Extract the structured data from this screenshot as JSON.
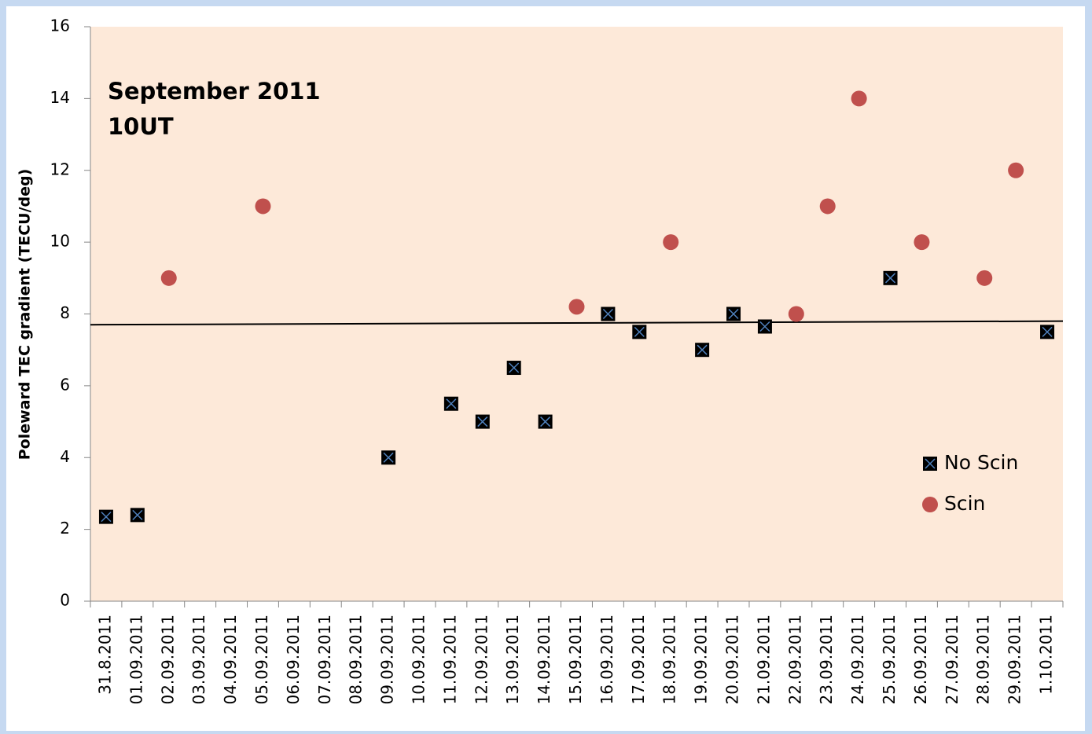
{
  "chart_data": {
    "type": "scatter",
    "annotation": [
      "September 2011",
      "10UT"
    ],
    "y_label": "Poleward TEC gradient (TECU/deg)",
    "categories": [
      "31.8.2011",
      "01.09.2011",
      "02.09.2011",
      "03.09.2011",
      "04.09.2011",
      "05.09.2011",
      "06.09.2011",
      "07.09.2011",
      "08.09.2011",
      "09.09.2011",
      "10.09.2011",
      "11.09.2011",
      "12.09.2011",
      "13.09.2011",
      "14.09.2011",
      "15.09.2011",
      "16.09.2011",
      "17.09.2011",
      "18.09.2011",
      "19.09.2011",
      "20.09.2011",
      "21.09.2011",
      "22.09.2011",
      "23.09.2011",
      "24.09.2011",
      "25.09.2011",
      "26.09.2011",
      "27.09.2011",
      "28.09.2011",
      "29.09.2011",
      "1.10.2011"
    ],
    "series": [
      {
        "name": "No Scin",
        "color": "#000000",
        "marker": "square",
        "values": [
          2.35,
          2.4,
          null,
          null,
          null,
          null,
          null,
          null,
          null,
          4,
          null,
          5.5,
          5,
          6.5,
          5,
          null,
          8,
          7.5,
          null,
          7,
          8,
          7.65,
          null,
          null,
          null,
          9,
          null,
          null,
          null,
          null,
          7.5
        ]
      },
      {
        "name": "Scin",
        "color": "#c0504d",
        "marker": "circle",
        "values": [
          null,
          null,
          9,
          null,
          null,
          11,
          null,
          null,
          null,
          null,
          null,
          null,
          null,
          null,
          null,
          8.2,
          null,
          null,
          10,
          null,
          null,
          null,
          8,
          11,
          14,
          null,
          10,
          null,
          9,
          12,
          null
        ]
      }
    ],
    "trendline": {
      "start": 7.7,
      "end": 7.8,
      "color": "#000000"
    },
    "ylim": [
      0,
      16
    ],
    "yticks": [
      0,
      2,
      4,
      6,
      8,
      10,
      12,
      14,
      16
    ],
    "legend": "lower-right",
    "plot_background": "#fde9d9"
  }
}
